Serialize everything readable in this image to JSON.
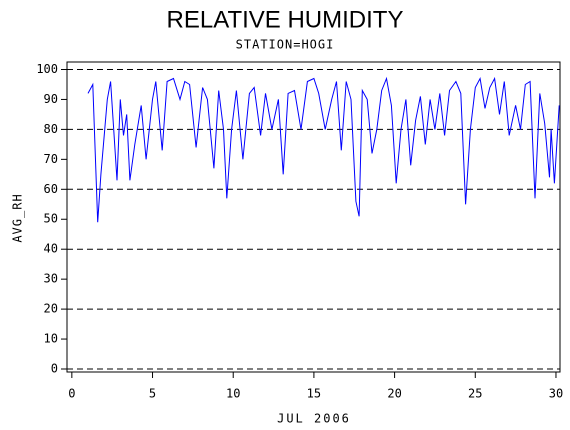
{
  "chart_data": {
    "type": "line",
    "title": "RELATIVE HUMIDITY",
    "subtitle": "STATION=HOGI",
    "y_label": "AVG_RH",
    "x_label": "JUL 2006",
    "xlim": [
      -0.3,
      30.25
    ],
    "ylim": [
      -1,
      102.5
    ],
    "xticks": [
      0,
      5,
      10,
      15,
      20,
      25,
      30
    ],
    "yticks": [
      0,
      10,
      20,
      30,
      40,
      50,
      60,
      70,
      80,
      90,
      100
    ],
    "ygrid": [
      0,
      20,
      40,
      60,
      80,
      100
    ],
    "series": [
      {
        "color": "#0000ff",
        "x": [
          1.0,
          1.3,
          1.6,
          1.8,
          2.2,
          2.4,
          2.8,
          3.0,
          3.2,
          3.4,
          3.6,
          3.9,
          4.3,
          4.6,
          5.0,
          5.2,
          5.6,
          5.9,
          6.3,
          6.7,
          7.0,
          7.3,
          7.7,
          8.1,
          8.4,
          8.8,
          9.1,
          9.4,
          9.6,
          9.9,
          10.2,
          10.6,
          11.0,
          11.3,
          11.7,
          12.0,
          12.4,
          12.8,
          13.1,
          13.4,
          13.8,
          14.2,
          14.6,
          15.0,
          15.3,
          15.7,
          16.1,
          16.4,
          16.7,
          17.0,
          17.3,
          17.6,
          17.8,
          18.0,
          18.3,
          18.6,
          18.9,
          19.2,
          19.5,
          19.8,
          20.1,
          20.4,
          20.7,
          21.0,
          21.3,
          21.6,
          21.9,
          22.2,
          22.5,
          22.8,
          23.1,
          23.4,
          23.8,
          24.1,
          24.4,
          24.7,
          25.0,
          25.3,
          25.6,
          25.9,
          26.2,
          26.5,
          26.8,
          27.1,
          27.5,
          27.8,
          28.1,
          28.4,
          28.7,
          29.0,
          29.3,
          29.6,
          29.7,
          29.9,
          30.2
        ],
        "values": [
          92,
          95,
          49,
          65,
          90,
          96,
          63,
          90,
          78,
          85,
          63,
          75,
          88,
          70,
          90,
          96,
          73,
          96,
          97,
          90,
          96,
          95,
          74,
          94,
          90,
          67,
          93,
          80,
          57,
          80,
          93,
          70,
          92,
          94,
          78,
          92,
          80,
          90,
          65,
          92,
          93,
          80,
          96,
          97,
          92,
          80,
          90,
          96,
          73,
          96,
          90,
          56,
          51,
          93,
          90,
          72,
          80,
          93,
          97,
          88,
          62,
          80,
          90,
          68,
          83,
          91,
          75,
          90,
          80,
          92,
          78,
          93,
          96,
          92,
          55,
          80,
          94,
          97,
          87,
          94,
          97,
          85,
          96,
          78,
          88,
          80,
          95,
          96,
          57,
          92,
          82,
          64,
          80,
          62,
          88
        ]
      }
    ]
  }
}
